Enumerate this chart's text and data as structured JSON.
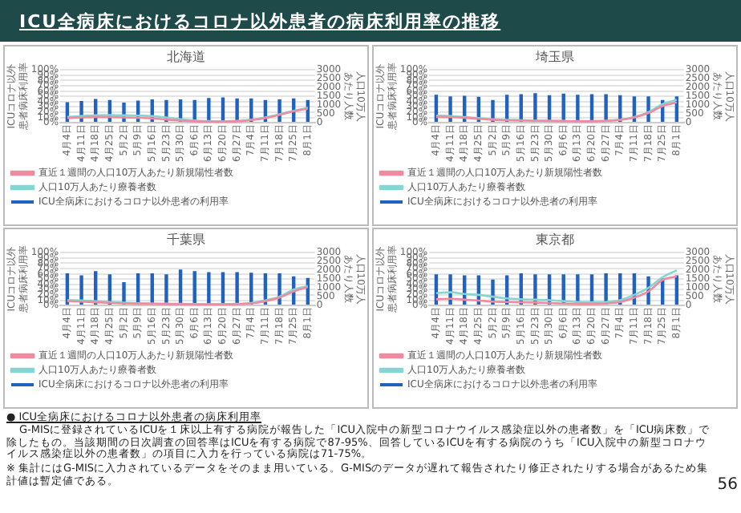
{
  "chart_data": [
    {
      "type": "other",
      "title": "ICU全病床におけるコロナ以外患者の病床利用率の推移",
      "annotations": [
        "● ICU全病床におけるコロナ以外患者の病床利用率",
        "G-MISに登録されているICUを１床以上有する病院が報告した「ICU入院中の新型コロナウイルス感染症以外の患者数」を「ICU病床数」で除したもの。当該期間の日次調査の回答率はICUを有する病院で87-95%、回答しているICUを有する病院のうち「ICU入院中の新型コロナウイルス感染症以外の患者数」の項目に入力を行っている病院は71-75%。",
        "※ 集計にはG-MISに入力されているデータをそのまま用いている。G-MISのデータが遅れて報告されたり修正されたりする場合があるため集計値は暫定値である。",
        "56"
      ]
    },
    {
      "type": "bar",
      "title": "北海道",
      "ylabel": "ICUコロナ以外患者病床利用率",
      "y2label": "人口10万人あたり人数",
      "categories": [
        "4月4日",
        "4月11日",
        "4月18日",
        "4月25日",
        "5月2日",
        "5月9日",
        "5月16日",
        "5月23日",
        "5月30日",
        "6月6日",
        "6月13日",
        "6月20日",
        "6月27日",
        "7月4日",
        "7月11日",
        "7月18日",
        "7月25日",
        "8月1日"
      ],
      "series": [
        {
          "name": "ICU全病床におけるコロナ以外患者の利用率",
          "color": "#1f62c0",
          "values": [
            39,
            41,
            45,
            43,
            38,
            42,
            44,
            43,
            44,
            43,
            47,
            48,
            46,
            46,
            43,
            44,
            46,
            43
          ]
        },
        {
          "name": "直近１週間の人口10万人あたり新規陽性者数",
          "type": "line",
          "axis": "y2",
          "color": "#f08a9e",
          "values": [
            270,
            300,
            330,
            320,
            300,
            280,
            250,
            180,
            120,
            80,
            60,
            60,
            80,
            150,
            270,
            450,
            650,
            800
          ]
        },
        {
          "name": "人口10万人あたり療養者数",
          "type": "line",
          "axis": "y2",
          "color": "#84d6d2",
          "values": [
            330,
            380,
            420,
            440,
            420,
            400,
            380,
            300,
            200,
            130,
            90,
            80,
            100,
            170,
            300,
            480,
            680,
            850
          ]
        }
      ],
      "ylim": [
        0,
        100
      ],
      "yticks": [
        {
          "value": 0,
          "label": "0%"
        },
        {
          "value": 10,
          "label": "10%"
        },
        {
          "value": 20,
          "label": "20%"
        },
        {
          "value": 30,
          "label": "30%"
        },
        {
          "value": 40,
          "label": "40%"
        },
        {
          "value": 50,
          "label": "50%"
        },
        {
          "value": 60,
          "label": "60%"
        },
        {
          "value": 70,
          "label": "70%"
        },
        {
          "value": 80,
          "label": "80%"
        },
        {
          "value": 90,
          "label": "90%"
        },
        {
          "value": 100,
          "label": "100%"
        }
      ],
      "y2lim": [
        0,
        3000
      ],
      "y2ticks": [
        0,
        500,
        1000,
        1500,
        2000,
        2500,
        3000
      ],
      "grid": "y",
      "legend": "bottom",
      "marker": "none",
      "line_style": "solid"
    },
    {
      "type": "bar",
      "title": "埼玉県",
      "ylabel": "ICUコロナ以外患者病床利用率",
      "y2label": "人口10万人あたり人数",
      "categories": [
        "4月4日",
        "4月11日",
        "4月18日",
        "4月25日",
        "5月2日",
        "5月9日",
        "5月16日",
        "5月23日",
        "5月30日",
        "6月6日",
        "6月13日",
        "6月20日",
        "6月27日",
        "7月4日",
        "7月11日",
        "7月18日",
        "7月25日",
        "8月1日"
      ],
      "series": [
        {
          "name": "ICU全病床におけるコロナ以外患者の利用率",
          "color": "#1f62c0",
          "values": [
            53,
            50,
            51,
            49,
            43,
            53,
            54,
            56,
            52,
            55,
            53,
            54,
            54,
            52,
            50,
            50,
            43,
            50
          ]
        },
        {
          "name": "直近１週間の人口10万人あたり新規陽性者数",
          "type": "line",
          "axis": "y2",
          "color": "#f08a9e",
          "values": [
            330,
            320,
            280,
            220,
            170,
            140,
            130,
            110,
            100,
            90,
            80,
            80,
            100,
            160,
            300,
            550,
            950,
            1150
          ]
        },
        {
          "name": "人口10万人あたり療養者数",
          "type": "line",
          "axis": "y2",
          "color": "#84d6d2",
          "values": [
            400,
            380,
            320,
            260,
            200,
            160,
            140,
            120,
            110,
            100,
            90,
            90,
            110,
            170,
            320,
            600,
            1050,
            1300
          ]
        }
      ],
      "ylim": [
        0,
        100
      ],
      "yticks": [
        {
          "value": 0,
          "label": "0%"
        },
        {
          "value": 10,
          "label": "10%"
        },
        {
          "value": 20,
          "label": "20%"
        },
        {
          "value": 30,
          "label": "30%"
        },
        {
          "value": 40,
          "label": "40%"
        },
        {
          "value": 50,
          "label": "50%"
        },
        {
          "value": 60,
          "label": "60%"
        },
        {
          "value": 70,
          "label": "70%"
        },
        {
          "value": 80,
          "label": "80%"
        },
        {
          "value": 90,
          "label": "90%"
        },
        {
          "value": 100,
          "label": "100%"
        }
      ],
      "y2lim": [
        0,
        3000
      ],
      "y2ticks": [
        0,
        500,
        1000,
        1500,
        2000,
        2500,
        3000
      ],
      "grid": "y",
      "legend": "bottom",
      "marker": "none",
      "line_style": "solid"
    },
    {
      "type": "bar",
      "title": "千葉県",
      "ylabel": "ICUコロナ以外患者病床利用率",
      "y2label": "人口10万人あたり人数",
      "categories": [
        "4月4日",
        "4月11日",
        "4月18日",
        "4月25日",
        "5月2日",
        "5月9日",
        "5月16日",
        "5月23日",
        "5月30日",
        "6月6日",
        "6月13日",
        "6月20日",
        "6月27日",
        "7月4日",
        "7月11日",
        "7月18日",
        "7月25日",
        "8月1日"
      ],
      "series": [
        {
          "name": "ICU全病床におけるコロナ以外患者の利用率",
          "color": "#1f62c0",
          "values": [
            61,
            57,
            65,
            59,
            44,
            61,
            61,
            59,
            68,
            65,
            63,
            63,
            63,
            62,
            61,
            61,
            55,
            52
          ]
        },
        {
          "name": "直近１週間の人口10万人あたり新規陽性者数",
          "type": "line",
          "axis": "y2",
          "color": "#f08a9e",
          "values": [
            250,
            220,
            180,
            150,
            120,
            100,
            90,
            80,
            70,
            60,
            60,
            60,
            70,
            120,
            250,
            450,
            800,
            1050
          ]
        },
        {
          "name": "人口10万人あたり療養者数",
          "type": "line",
          "axis": "y2",
          "color": "#84d6d2",
          "values": [
            300,
            290,
            240,
            200,
            160,
            130,
            110,
            100,
            90,
            80,
            70,
            70,
            90,
            140,
            290,
            500,
            900,
            1100
          ]
        }
      ],
      "ylim": [
        0,
        100
      ],
      "yticks": [
        {
          "value": 0,
          "label": "0%"
        },
        {
          "value": 10,
          "label": "10%"
        },
        {
          "value": 20,
          "label": "20%"
        },
        {
          "value": 30,
          "label": "30%"
        },
        {
          "value": 40,
          "label": "40%"
        },
        {
          "value": 50,
          "label": "50%"
        },
        {
          "value": 60,
          "label": "60%"
        },
        {
          "value": 70,
          "label": "70%"
        },
        {
          "value": 80,
          "label": "80%"
        },
        {
          "value": 90,
          "label": "90%"
        },
        {
          "value": 100,
          "label": "100%"
        }
      ],
      "y2lim": [
        0,
        3000
      ],
      "y2ticks": [
        0,
        500,
        1000,
        1500,
        2000,
        2500,
        3000
      ],
      "grid": "y",
      "legend": "bottom",
      "marker": "none",
      "line_style": "solid"
    },
    {
      "type": "bar",
      "title": "東京都",
      "ylabel": "ICUコロナ以外患者病床利用率",
      "y2label": "人口10万人あたり人数",
      "categories": [
        "4月4日",
        "4月11日",
        "4月18日",
        "4月25日",
        "5月2日",
        "5月9日",
        "5月16日",
        "5月23日",
        "5月30日",
        "6月6日",
        "6月13日",
        "6月20日",
        "6月27日",
        "7月4日",
        "7月11日",
        "7月18日",
        "7月25日",
        "8月1日"
      ],
      "series": [
        {
          "name": "ICU全病床におけるコロナ以外患者の利用率",
          "color": "#1f62c0",
          "values": [
            59,
            59,
            57,
            57,
            49,
            57,
            61,
            59,
            59,
            59,
            59,
            59,
            61,
            61,
            61,
            55,
            51,
            57
          ]
        },
        {
          "name": "直近１週間の人口10万人あたり新規陽性者数",
          "type": "line",
          "axis": "y2",
          "color": "#f08a9e",
          "values": [
            350,
            380,
            330,
            280,
            220,
            200,
            180,
            170,
            140,
            110,
            90,
            90,
            110,
            200,
            450,
            800,
            1450,
            1650
          ]
        },
        {
          "name": "人口10万人あたり療養者数",
          "type": "line",
          "axis": "y2",
          "color": "#84d6d2",
          "values": [
            700,
            750,
            650,
            600,
            500,
            400,
            350,
            330,
            300,
            250,
            200,
            180,
            200,
            300,
            600,
            1000,
            1600,
            2000
          ]
        }
      ],
      "ylim": [
        0,
        100
      ],
      "yticks": [
        {
          "value": 0,
          "label": "0%"
        },
        {
          "value": 10,
          "label": "10%"
        },
        {
          "value": 20,
          "label": "20%"
        },
        {
          "value": 30,
          "label": "30%"
        },
        {
          "value": 40,
          "label": "40%"
        },
        {
          "value": 50,
          "label": "50%"
        },
        {
          "value": 60,
          "label": "60%"
        },
        {
          "value": 70,
          "label": "70%"
        },
        {
          "value": 80,
          "label": "80%"
        },
        {
          "value": 90,
          "label": "90%"
        },
        {
          "value": 100,
          "label": "100%"
        }
      ],
      "y2lim": [
        0,
        3000
      ],
      "y2ticks": [
        0,
        500,
        1000,
        1500,
        2000,
        2500,
        3000
      ],
      "grid": "y",
      "legend": "bottom",
      "marker": "none",
      "line_style": "solid"
    }
  ]
}
